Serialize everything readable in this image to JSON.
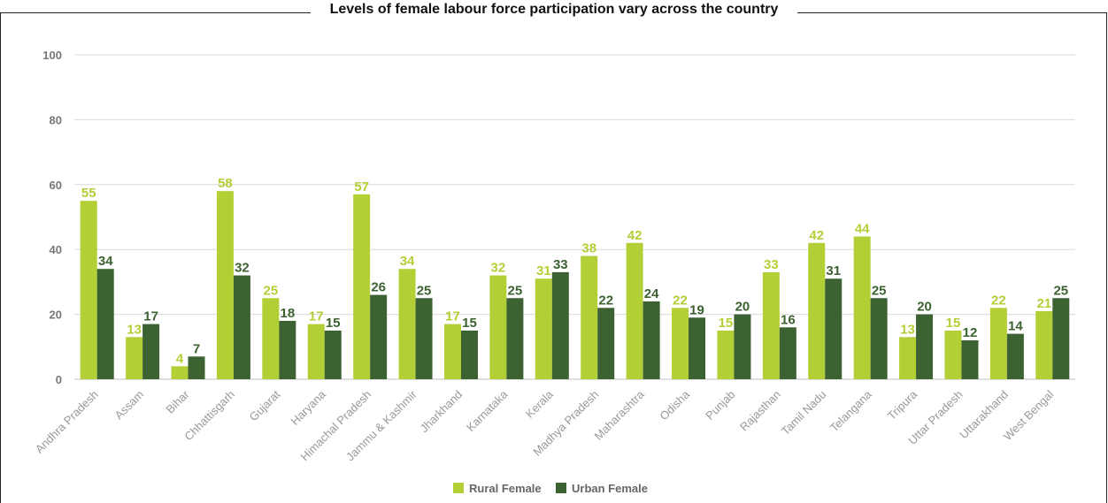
{
  "colors": {
    "rural": "#b2cf36",
    "urban": "#3c6231",
    "grid": "#d9d9d9"
  },
  "chart_data": {
    "type": "bar",
    "title": "Levels of female labour force participation vary across the country",
    "xlabel": "",
    "ylabel": "",
    "ylim": [
      0,
      100
    ],
    "yticks": [
      0,
      20,
      40,
      60,
      80,
      100
    ],
    "grid": true,
    "legend_position": "bottom-center",
    "categories": [
      "Andhra Pradesh",
      "Assam",
      "Bihar",
      "Chhattisgarh",
      "Gujarat",
      "Haryana",
      "Himachal Pradesh",
      "Jammu & Kashmir",
      "Jharkhand",
      "Karnataka",
      "Kerala",
      "Madhya Pradesh",
      "Maharashtra",
      "Odisha",
      "Punjab",
      "Rajasthan",
      "Tamil Nadu",
      "Telangana",
      "Tripura",
      "Uttar Pradesh",
      "Uttarakhand",
      "West Bengal"
    ],
    "series": [
      {
        "name": "Rural Female",
        "values": [
          55,
          13,
          4,
          58,
          25,
          17,
          57,
          34,
          17,
          32,
          31,
          38,
          42,
          22,
          15,
          33,
          42,
          44,
          13,
          15,
          22,
          21
        ]
      },
      {
        "name": "Urban Female",
        "values": [
          34,
          17,
          7,
          32,
          18,
          15,
          26,
          25,
          15,
          25,
          33,
          22,
          24,
          19,
          20,
          16,
          31,
          25,
          20,
          12,
          14,
          25
        ]
      }
    ]
  }
}
